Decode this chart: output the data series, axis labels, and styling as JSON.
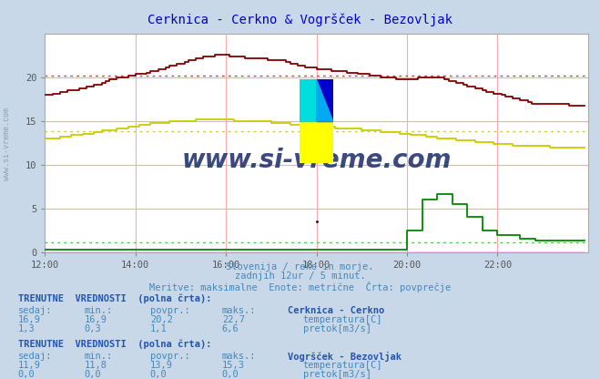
{
  "title": "Cerknica - Cerkno & Vogršček - Bezovljak",
  "subtitle1": "Slovenija / reke in morje.",
  "subtitle2": "zadnjih 12ur / 5 minut.",
  "subtitle3": "Meritve: maksimalne  Enote: metrične  Črta: povprečje",
  "bg_color": "#c8d8e8",
  "plot_bg_color": "#ffffff",
  "grid_color_h": "#ffaaaa",
  "grid_color_v": "#ffaaaa",
  "title_color": "#0000cc",
  "text_color": "#4488bb",
  "bold_text_color": "#2255aa",
  "watermark_text": "www.si-vreme.com",
  "watermark_color": "#1a2a6a",
  "side_watermark_color": "#8899aa",
  "xlabel_color": "#555555",
  "xmin": 0,
  "xmax": 144,
  "ymin": 0,
  "ymax": 25,
  "yticks": [
    0,
    5,
    10,
    15,
    20
  ],
  "xtick_labels": [
    "12:00",
    "14:00",
    "16:00",
    "18:00",
    "20:00",
    "22:00"
  ],
  "xtick_positions": [
    0,
    24,
    48,
    72,
    96,
    120
  ],
  "colors": {
    "cerknica_temp": "#880000",
    "cerknica_pretok": "#008800",
    "vogrsek_temp": "#cccc00",
    "vogrsek_pretok": "#ff00ff",
    "avg_cerknica_temp": "#cc4444",
    "avg_vogrsek_temp": "#cccc44",
    "avg_cerknica_pretok": "#44cc44",
    "avg_vogrsek_pretok": "#ff88ff"
  },
  "avg_cerknica_temp": 20.2,
  "avg_vogrsek_temp": 13.9,
  "avg_cerknica_pretok": 1.1,
  "avg_vogrsek_pretok": 0.0,
  "legend_info": {
    "section1_title": "TRENUTNE  VREDNOSTI  (polna črta):",
    "section1_station": "Cerknica - Cerkno",
    "section1_headers": [
      "sedaj:",
      "min.:",
      "povpr.:",
      "maks.:"
    ],
    "section1_row1": [
      "16,9",
      "16,9",
      "20,2",
      "22,7"
    ],
    "section1_row1_label": "temperatura[C]",
    "section1_row1_color": "#cc0000",
    "section1_row2": [
      "1,3",
      "0,3",
      "1,1",
      "6,6"
    ],
    "section1_row2_label": "pretok[m3/s]",
    "section1_row2_color": "#00aa00",
    "section2_title": "TRENUTNE  VREDNOSTI  (polna črta):",
    "section2_station": "Vogršček - Bezovljak",
    "section2_headers": [
      "sedaj:",
      "min.:",
      "povpr.:",
      "maks.:"
    ],
    "section2_row1": [
      "11,9",
      "11,8",
      "13,9",
      "15,3"
    ],
    "section2_row1_label": "temperatura[C]",
    "section2_row1_color": "#cccc00",
    "section2_row2": [
      "0,0",
      "0,0",
      "0,0",
      "0,0"
    ],
    "section2_row2_label": "pretok[m3/s]",
    "section2_row2_color": "#ff00ff"
  }
}
